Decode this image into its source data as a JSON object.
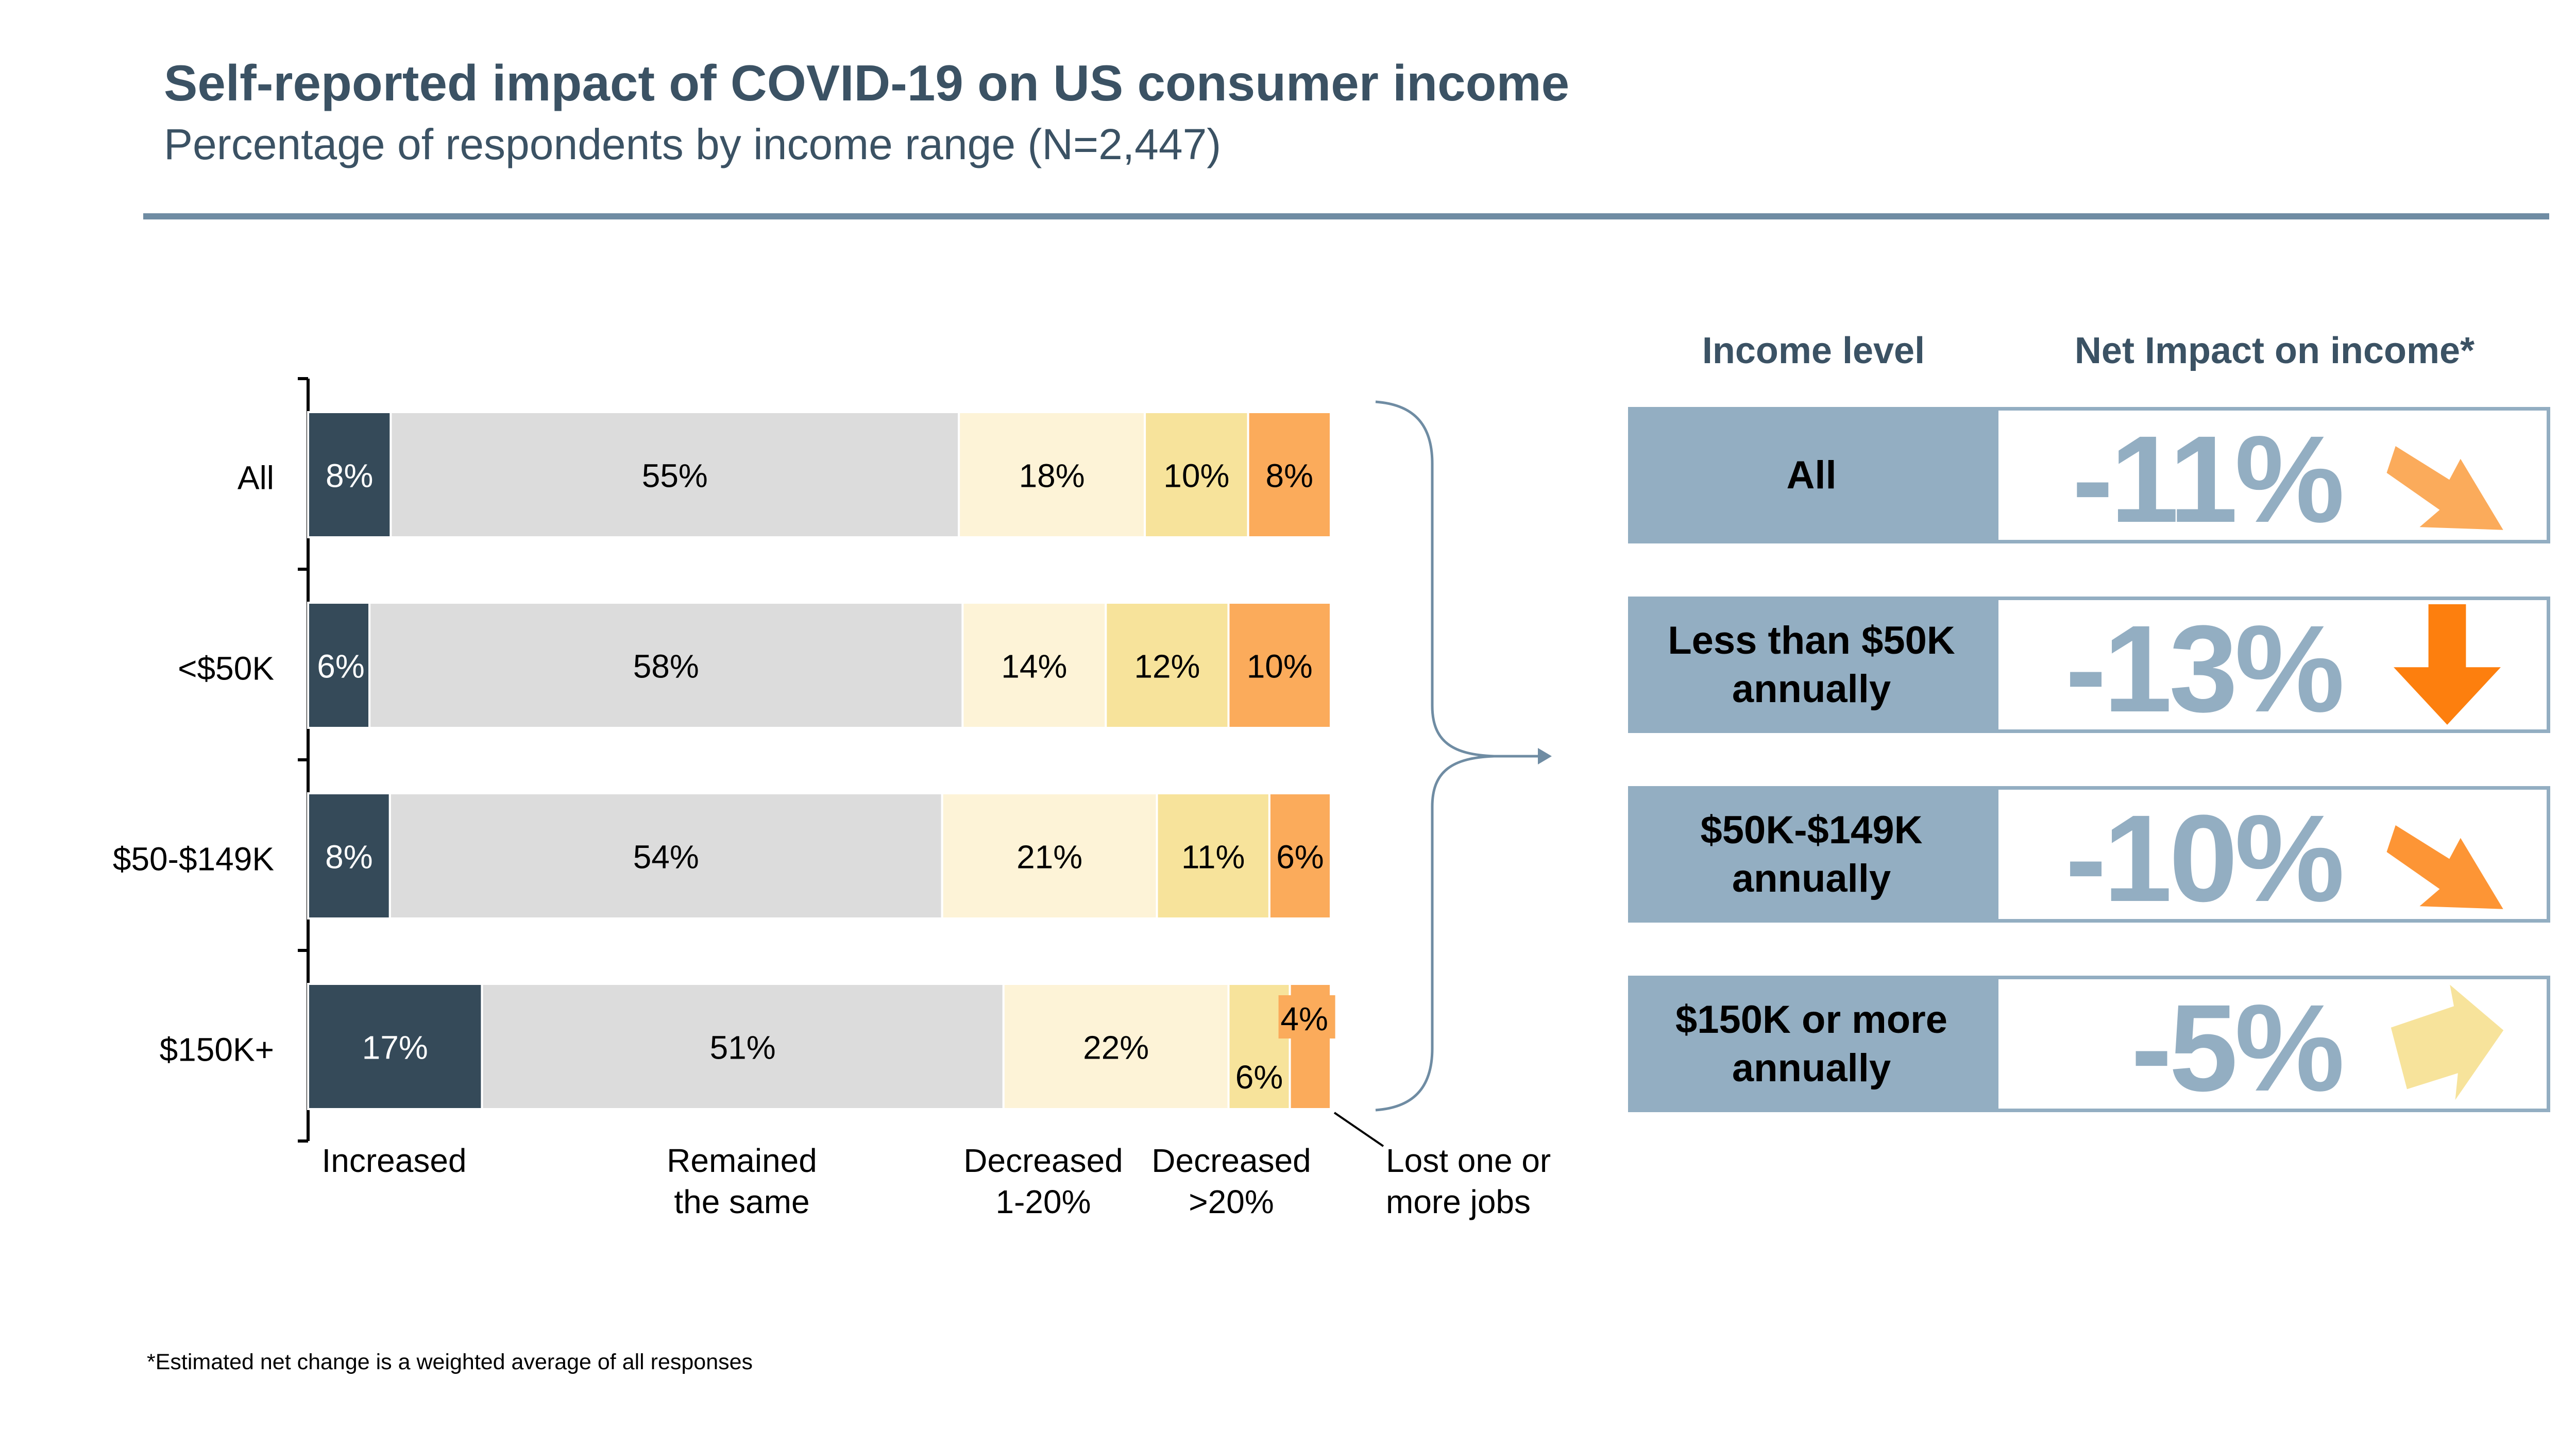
{
  "header": {
    "title": "Self-reported impact of COVID-19 on US consumer income",
    "subtitle": "Percentage of respondents by income range (N=2,447)"
  },
  "chart_data": {
    "type": "bar",
    "orientation": "horizontal",
    "stacked": true,
    "categories": [
      "All",
      "<$50K",
      "$50-$149K",
      "$150K+"
    ],
    "series": [
      {
        "name": "Increased",
        "values": [
          8,
          6,
          8,
          17
        ],
        "labels": [
          "8%",
          "6%",
          "8%",
          "17%"
        ],
        "color": "#354a59",
        "text_color": "#ffffff"
      },
      {
        "name": "Remained the same",
        "values": [
          55,
          58,
          54,
          51
        ],
        "labels": [
          "55%",
          "58%",
          "54%",
          "51%"
        ],
        "color": "#dcdcdc",
        "text_color": "#000000"
      },
      {
        "name": "Decreased 1-20%",
        "values": [
          18,
          14,
          21,
          22
        ],
        "labels": [
          "18%",
          "14%",
          "21%",
          "22%"
        ],
        "color": "#fdf3d7",
        "text_color": "#000000"
      },
      {
        "name": "Decreased >20%",
        "values": [
          10,
          12,
          11,
          6
        ],
        "labels": [
          "10%",
          "12%",
          "11%",
          "6%"
        ],
        "color": "#f7e39b",
        "text_color": "#000000"
      },
      {
        "name": "Lost one or more jobs",
        "values": [
          8,
          10,
          6,
          4
        ],
        "labels": [
          "8%",
          "10%",
          "6%",
          "4%"
        ],
        "color": "#fbab5b",
        "text_color": "#000000"
      }
    ],
    "legend": {
      "placement": "bottom",
      "items": [
        "Increased",
        "Remained the same",
        "Decreased 1-20%",
        "Decreased >20%",
        "Lost one or more jobs"
      ]
    },
    "grid": false
  },
  "impact_table": {
    "col_income_header": "Income level",
    "col_impact_header": "Net Impact on income*",
    "rows": [
      {
        "label": "All",
        "value": "-11%",
        "arrow_color": "#fbab5b",
        "arrow_direction": "down-right"
      },
      {
        "label": "Less than $50K annually",
        "value": "-13%",
        "arrow_color": "#fd7f0e",
        "arrow_direction": "down"
      },
      {
        "label": "$50K-$149K annually",
        "value": "-10%",
        "arrow_color": "#fd9535",
        "arrow_direction": "down-right"
      },
      {
        "label": "$150K or more annually",
        "value": "-5%",
        "arrow_color": "#f7e39b",
        "arrow_direction": "right"
      }
    ]
  },
  "footnote": "*Estimated net change is a weighted average of all responses"
}
